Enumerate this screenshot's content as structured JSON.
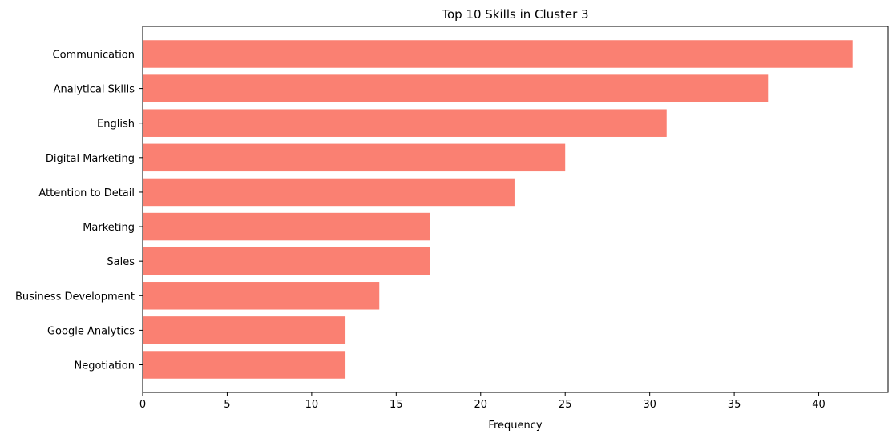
{
  "chart_data": {
    "type": "bar",
    "orientation": "horizontal",
    "title": "Top 10 Skills in Cluster 3",
    "xlabel": "Frequency",
    "ylabel": "",
    "categories": [
      "Communication",
      "Analytical Skills",
      "English",
      "Digital Marketing",
      "Attention to Detail",
      "Marketing",
      "Sales",
      "Business Development",
      "Google Analytics",
      "Negotiation"
    ],
    "values": [
      42,
      37,
      31,
      25,
      22,
      17,
      17,
      14,
      12,
      12
    ],
    "xlim": [
      0,
      44.1
    ],
    "xticks": [
      0,
      5,
      10,
      15,
      20,
      25,
      30,
      35,
      40
    ],
    "bar_color": "#fa8072",
    "grid": false,
    "legend": "none"
  }
}
